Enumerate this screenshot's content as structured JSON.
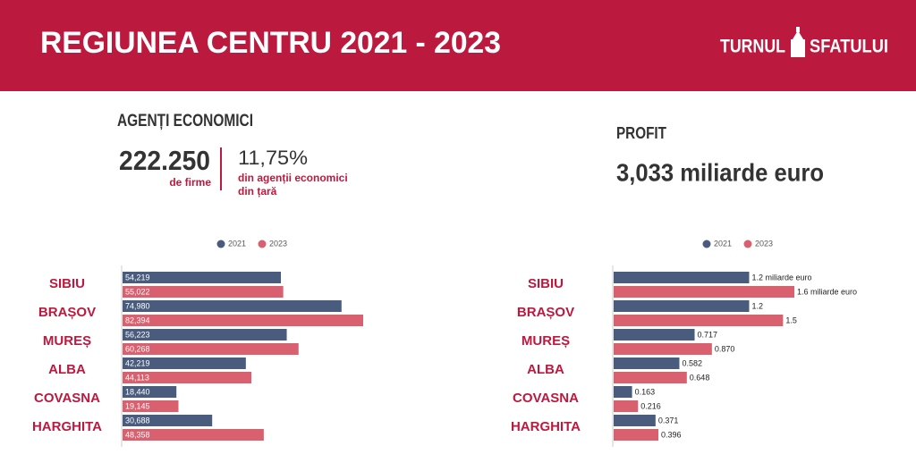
{
  "header": {
    "title": "REGIUNEA CENTRU 2021 - 2023",
    "logo": [
      "TURNUL",
      "SFATULUI"
    ]
  },
  "stats": {
    "left": {
      "heading": "AGENȚI ECONOMICI",
      "count": "222.250",
      "count_label": "de firme",
      "share": "11,75%",
      "share_label": [
        "din agenții economici",
        "din țară"
      ]
    },
    "right": {
      "heading": "PROFIT",
      "value": "3,033 miliarde euro"
    }
  },
  "chart_data": [
    {
      "type": "bar",
      "horizontal": true,
      "label_position": "inside",
      "categories": [
        "SIBIU",
        "BRAȘOV",
        "MUREȘ",
        "ALBA",
        "COVASNA",
        "HARGHITA"
      ],
      "series": [
        {
          "name": "2021",
          "color": "#4a5c7d",
          "values": [
            54219,
            74980,
            56223,
            42219,
            18440,
            30688
          ],
          "value_labels": [
            "54,219",
            "74,980",
            "56,223",
            "42,219",
            "18,440",
            "30,688"
          ]
        },
        {
          "name": "2023",
          "color": "#d9606f",
          "values": [
            55022,
            82394,
            60268,
            44113,
            19145,
            48358
          ],
          "value_labels": [
            "55,022",
            "82,394",
            "60,268",
            "44,113",
            "19,145",
            "48,358"
          ]
        }
      ]
    },
    {
      "type": "bar",
      "horizontal": true,
      "label_position": "outside",
      "categories": [
        "SIBIU",
        "BRAȘOV",
        "MUREȘ",
        "ALBA",
        "COVASNA",
        "HARGHITA"
      ],
      "series": [
        {
          "name": "2021",
          "color": "#4a5c7d",
          "values": [
            1.2,
            1.2,
            0.717,
            0.582,
            0.163,
            0.371
          ],
          "value_labels": [
            "1.2 miliarde euro",
            "1.2",
            "0.717",
            "0.582",
            "0.163",
            "0.371"
          ]
        },
        {
          "name": "2023",
          "color": "#d9606f",
          "values": [
            1.6,
            1.5,
            0.87,
            0.648,
            0.216,
            0.396
          ],
          "value_labels": [
            "1.6 miliarde euro",
            "1.5",
            "0.870",
            "0.648",
            "0.216",
            "0.396"
          ]
        }
      ]
    }
  ]
}
